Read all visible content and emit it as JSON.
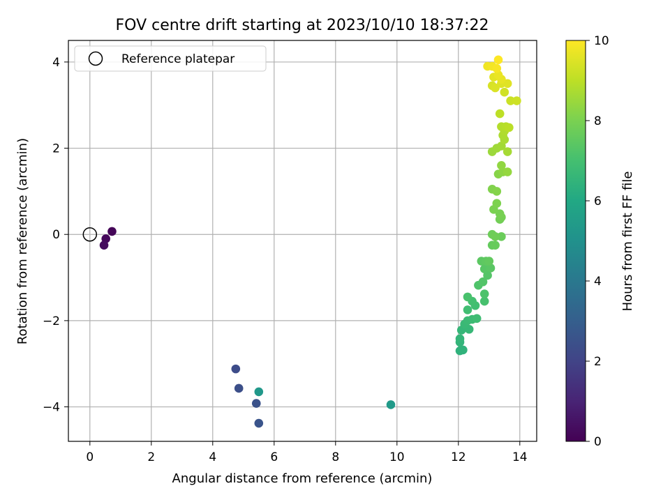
{
  "chart_data": {
    "type": "scatter",
    "title": "FOV centre drift starting at 2023/10/10 18:37:22",
    "xlabel": "Angular distance from reference (arcmin)",
    "ylabel": "Rotation from reference (arcmin)",
    "xlim": [
      -0.7,
      14.55
    ],
    "ylim": [
      -4.8,
      4.5
    ],
    "xticks": [
      0,
      2,
      4,
      6,
      8,
      10,
      12,
      14
    ],
    "yticks": [
      -4,
      -2,
      0,
      2,
      4
    ],
    "grid": true,
    "legend": {
      "position": "top-left",
      "entries": [
        "Reference platepar"
      ]
    },
    "reference_point": {
      "x": 0,
      "y": 0
    },
    "colorbar": {
      "label": "Hours from first FF file",
      "colormap": "viridis",
      "min": 0,
      "max": 10,
      "ticks": [
        0,
        2,
        4,
        6,
        8,
        10
      ]
    },
    "points": [
      {
        "x": 0.72,
        "y": 0.07,
        "t": 0.1
      },
      {
        "x": 0.52,
        "y": -0.1,
        "t": 0.2
      },
      {
        "x": 0.46,
        "y": -0.25,
        "t": 0.3
      },
      {
        "x": 4.75,
        "y": -3.12,
        "t": 2.3
      },
      {
        "x": 4.85,
        "y": -3.57,
        "t": 2.4
      },
      {
        "x": 5.42,
        "y": -3.92,
        "t": 2.5
      },
      {
        "x": 5.5,
        "y": -4.38,
        "t": 2.6
      },
      {
        "x": 5.5,
        "y": -3.65,
        "t": 5.3
      },
      {
        "x": 9.8,
        "y": -3.95,
        "t": 5.4
      },
      {
        "x": 12.05,
        "y": -2.7,
        "t": 6.4
      },
      {
        "x": 12.15,
        "y": -2.68,
        "t": 6.45
      },
      {
        "x": 12.05,
        "y": -2.5,
        "t": 6.5
      },
      {
        "x": 12.05,
        "y": -2.42,
        "t": 6.55
      },
      {
        "x": 12.1,
        "y": -2.22,
        "t": 6.6
      },
      {
        "x": 12.35,
        "y": -2.2,
        "t": 6.65
      },
      {
        "x": 12.2,
        "y": -2.08,
        "t": 6.7
      },
      {
        "x": 12.3,
        "y": -2.0,
        "t": 6.75
      },
      {
        "x": 12.45,
        "y": -1.97,
        "t": 6.8
      },
      {
        "x": 12.6,
        "y": -1.95,
        "t": 6.85
      },
      {
        "x": 12.3,
        "y": -1.75,
        "t": 6.9
      },
      {
        "x": 12.55,
        "y": -1.65,
        "t": 6.95
      },
      {
        "x": 12.45,
        "y": -1.55,
        "t": 7.0
      },
      {
        "x": 12.85,
        "y": -1.55,
        "t": 7.05
      },
      {
        "x": 12.3,
        "y": -1.45,
        "t": 7.1
      },
      {
        "x": 12.85,
        "y": -1.38,
        "t": 7.15
      },
      {
        "x": 12.65,
        "y": -1.18,
        "t": 7.2
      },
      {
        "x": 12.8,
        "y": -1.1,
        "t": 7.25
      },
      {
        "x": 12.95,
        "y": -0.95,
        "t": 7.3
      },
      {
        "x": 12.85,
        "y": -0.8,
        "t": 7.35
      },
      {
        "x": 13.05,
        "y": -0.78,
        "t": 7.4
      },
      {
        "x": 12.75,
        "y": -0.62,
        "t": 7.45
      },
      {
        "x": 12.9,
        "y": -0.62,
        "t": 7.5
      },
      {
        "x": 13.0,
        "y": -0.62,
        "t": 7.55
      },
      {
        "x": 13.1,
        "y": -0.25,
        "t": 7.6
      },
      {
        "x": 13.2,
        "y": -0.25,
        "t": 7.65
      },
      {
        "x": 13.4,
        "y": -0.05,
        "t": 7.7
      },
      {
        "x": 13.1,
        "y": 0.0,
        "t": 7.75
      },
      {
        "x": 13.2,
        "y": -0.05,
        "t": 7.8
      },
      {
        "x": 13.35,
        "y": 0.35,
        "t": 7.85
      },
      {
        "x": 13.4,
        "y": 0.4,
        "t": 7.9
      },
      {
        "x": 13.35,
        "y": 0.48,
        "t": 7.95
      },
      {
        "x": 13.15,
        "y": 0.58,
        "t": 8.0
      },
      {
        "x": 13.25,
        "y": 0.72,
        "t": 8.05
      },
      {
        "x": 13.1,
        "y": 1.05,
        "t": 8.1
      },
      {
        "x": 13.25,
        "y": 1.0,
        "t": 8.15
      },
      {
        "x": 13.3,
        "y": 1.4,
        "t": 8.2
      },
      {
        "x": 13.45,
        "y": 1.45,
        "t": 8.3
      },
      {
        "x": 13.4,
        "y": 1.6,
        "t": 8.35
      },
      {
        "x": 13.6,
        "y": 1.45,
        "t": 8.4
      },
      {
        "x": 13.1,
        "y": 1.92,
        "t": 8.5
      },
      {
        "x": 13.25,
        "y": 2.0,
        "t": 8.55
      },
      {
        "x": 13.4,
        "y": 2.05,
        "t": 8.6
      },
      {
        "x": 13.6,
        "y": 1.92,
        "t": 8.65
      },
      {
        "x": 13.5,
        "y": 2.2,
        "t": 8.7
      },
      {
        "x": 13.45,
        "y": 2.3,
        "t": 8.75
      },
      {
        "x": 13.5,
        "y": 2.4,
        "t": 8.8
      },
      {
        "x": 13.4,
        "y": 2.5,
        "t": 8.85
      },
      {
        "x": 13.55,
        "y": 2.5,
        "t": 8.9
      },
      {
        "x": 13.65,
        "y": 2.48,
        "t": 8.95
      },
      {
        "x": 13.35,
        "y": 2.8,
        "t": 9.0
      },
      {
        "x": 13.7,
        "y": 3.1,
        "t": 9.2
      },
      {
        "x": 13.9,
        "y": 3.1,
        "t": 9.25
      },
      {
        "x": 13.5,
        "y": 3.3,
        "t": 9.3
      },
      {
        "x": 13.1,
        "y": 3.45,
        "t": 9.4
      },
      {
        "x": 13.2,
        "y": 3.4,
        "t": 9.45
      },
      {
        "x": 13.4,
        "y": 3.5,
        "t": 9.5
      },
      {
        "x": 13.6,
        "y": 3.5,
        "t": 9.55
      },
      {
        "x": 13.15,
        "y": 3.65,
        "t": 9.6
      },
      {
        "x": 13.4,
        "y": 3.6,
        "t": 9.65
      },
      {
        "x": 13.3,
        "y": 3.7,
        "t": 9.7
      },
      {
        "x": 12.95,
        "y": 3.9,
        "t": 9.8
      },
      {
        "x": 13.1,
        "y": 3.9,
        "t": 9.85
      },
      {
        "x": 13.25,
        "y": 3.85,
        "t": 9.9
      },
      {
        "x": 13.3,
        "y": 4.05,
        "t": 10.0
      }
    ]
  }
}
